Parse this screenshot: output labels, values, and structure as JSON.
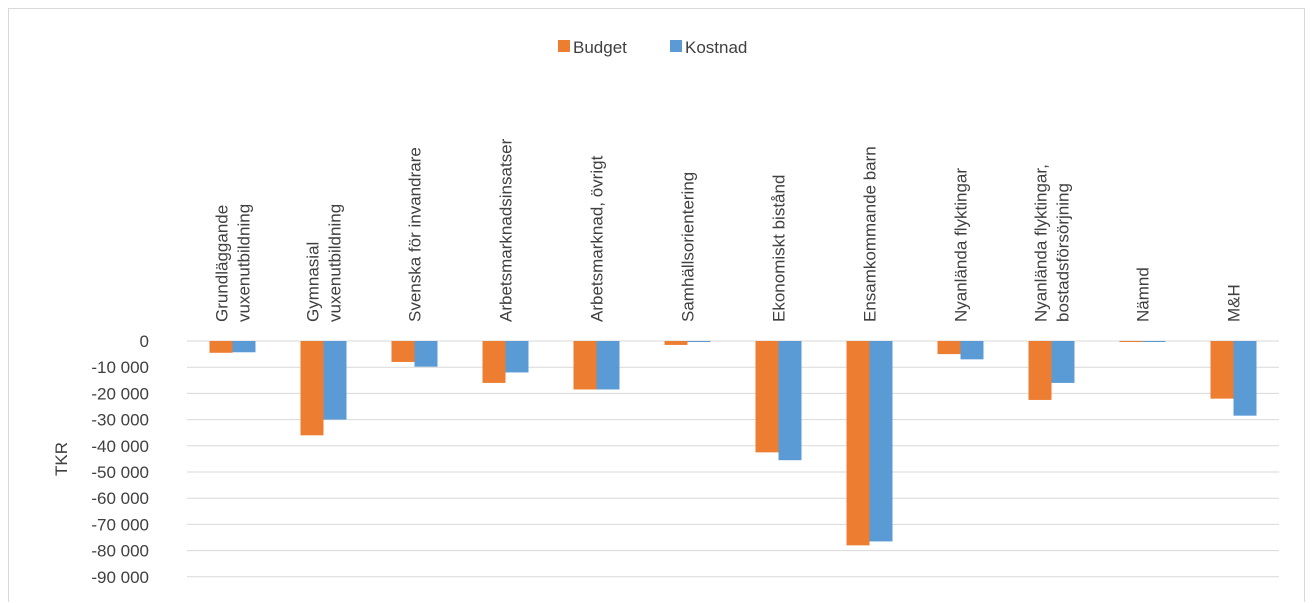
{
  "chart_data": {
    "type": "bar",
    "ylabel": "TKR",
    "ylim": [
      -90000,
      0
    ],
    "ytick_step": 10000,
    "yticks": [
      "0",
      "-10 000",
      "-20 000",
      "-30 000",
      "-40 000",
      "-50 000",
      "-60 000",
      "-70 000",
      "-80 000",
      "-90 000"
    ],
    "grid": true,
    "legend_position": "top",
    "categories": [
      [
        "Grundläggande",
        "vuxenutbildning"
      ],
      [
        "Gymnasial",
        "vuxenutbildning"
      ],
      [
        "Svenska för invandrare"
      ],
      [
        "Arbetsmarknadsinsatser"
      ],
      [
        "Arbetsmarknad, övrigt"
      ],
      [
        "Samhällsorientering"
      ],
      [
        "Ekonomiskt bistånd"
      ],
      [
        "Ensamkommande barn"
      ],
      [
        "Nyanlända flyktingar"
      ],
      [
        "Nyanlända flyktingar,",
        "bostadsförsörjning"
      ],
      [
        "Nämnd"
      ],
      [
        "M&H"
      ]
    ],
    "series": [
      {
        "name": "Budget",
        "color": "#ed7d31",
        "values": [
          -4500,
          -36000,
          -8000,
          -16000,
          -18500,
          -1500,
          -42500,
          -78000,
          -5000,
          -22500,
          -200,
          -22000
        ]
      },
      {
        "name": "Kostnad",
        "color": "#5b9bd5",
        "values": [
          -4300,
          -30000,
          -9800,
          -12000,
          -18500,
          -300,
          -45500,
          -76500,
          -7000,
          -16000,
          -200,
          -28500
        ]
      }
    ]
  }
}
